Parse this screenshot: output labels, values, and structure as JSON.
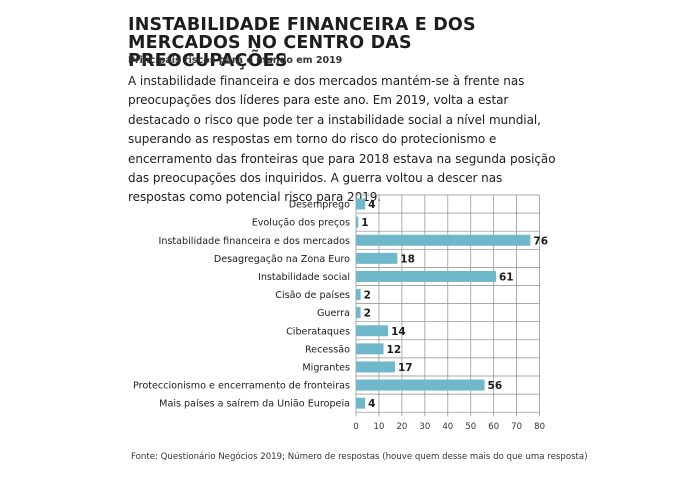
{
  "header": {
    "title": "INSTABILIDADE FINANCEIRA E DOS MERCADOS NO CENTRO DAS PREOCUPAÇÕES",
    "subtitle": "Principais riscos para o mundo em 2019"
  },
  "lead": "A instabilidade financeira e dos mercados mantém-se à frente nas preocupações dos líderes para este ano. Em 2019, volta a estar destacado o risco que pode ter a instabilidade social a nível mundial, superando as respostas em torno do risco do protecionismo e encerramento das fronteiras que para 2018 estava na segunda posição das preocupações dos inquiridos. A guerra voltou a descer nas respostas como potencial risco para 2019.",
  "source": "Fonte: Questionário Negócios 2019; Número de respostas (houve quem desse mais do  que uma resposta)",
  "chart_data": {
    "type": "bar",
    "orientation": "horizontal",
    "categories": [
      "Desemprego",
      "Evolução dos preços",
      "Instabilidade financeira e dos mercados",
      "Desagregação na Zona Euro",
      "Instabilidade social",
      "Cisão de países",
      "Guerra",
      "Ciberataques",
      "Recessão",
      "Migrantes",
      "Proteccionismo e encerramento de fronteiras",
      "Mais países a saírem da União Europeia"
    ],
    "values": [
      4,
      1,
      76,
      18,
      61,
      2,
      2,
      14,
      12,
      17,
      56,
      4
    ],
    "xticks": [
      0,
      10,
      20,
      30,
      40,
      50,
      60,
      70,
      80
    ],
    "xlim": [
      0,
      80
    ],
    "grid": true,
    "bar_color": "#6fb8cc",
    "grid_color": "#8c8c8c"
  }
}
